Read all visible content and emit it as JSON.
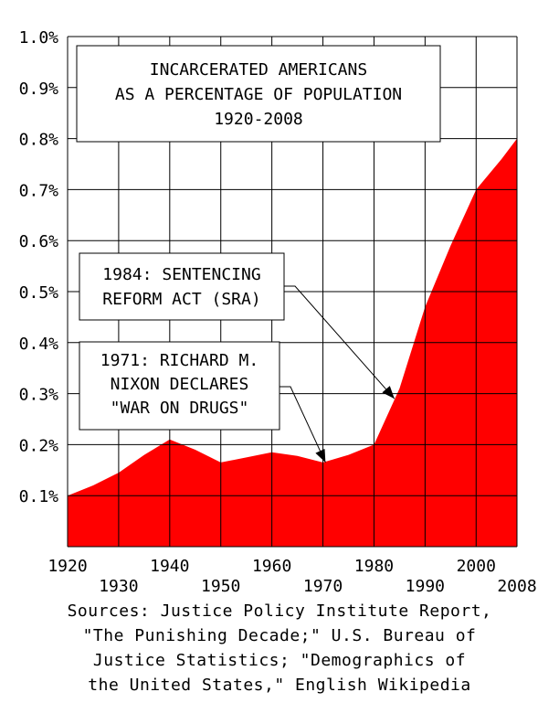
{
  "chart_data": {
    "type": "area",
    "title_lines": [
      "INCARCERATED AMERICANS",
      "AS A PERCENTAGE OF POPULATION",
      "1920-2008"
    ],
    "x": [
      1920,
      1925,
      1930,
      1935,
      1940,
      1945,
      1950,
      1955,
      1960,
      1965,
      1970,
      1975,
      1980,
      1985,
      1990,
      1995,
      2000,
      2005,
      2008
    ],
    "series": [
      {
        "values": [
          0.1,
          0.12,
          0.145,
          0.18,
          0.21,
          0.19,
          0.165,
          0.175,
          0.185,
          0.178,
          0.165,
          0.18,
          0.2,
          0.31,
          0.47,
          0.59,
          0.7,
          0.76,
          0.8
        ]
      }
    ],
    "xlim": [
      1920,
      2008
    ],
    "ylim": [
      0,
      1.0
    ],
    "x_ticks_row1": [
      "1920",
      "1940",
      "1960",
      "1980",
      "2000"
    ],
    "x_ticks_row2": [
      "1930",
      "1950",
      "1970",
      "1990",
      "2008"
    ],
    "y_ticks": [
      "1.0%",
      "0.9%",
      "0.8%",
      "0.7%",
      "0.6%",
      "0.5%",
      "0.4%",
      "0.3%",
      "0.2%",
      "0.1%"
    ],
    "y_tick_values": [
      1.0,
      0.9,
      0.8,
      0.7,
      0.6,
      0.5,
      0.4,
      0.3,
      0.2,
      0.1
    ],
    "grid": true,
    "colors": {
      "fill": "#ff0000",
      "grid": "#000000",
      "text": "#000000",
      "background": "#ffffff"
    },
    "annotations": [
      {
        "lines": [
          "1984: SENTENCING",
          "REFORM ACT (SRA)"
        ],
        "x": 1984,
        "y": 0.29
      },
      {
        "lines": [
          "1971: RICHARD M.",
          "NIXON DECLARES",
          "\"WAR ON DRUGS\""
        ],
        "x": 1970.5,
        "y": 0.165
      }
    ]
  },
  "sources": [
    "Sources: Justice Policy Institute Report,",
    "\"The Punishing Decade;\" U.S. Bureau of",
    "Justice Statistics; \"Demographics of",
    "the United States,\" English Wikipedia"
  ]
}
